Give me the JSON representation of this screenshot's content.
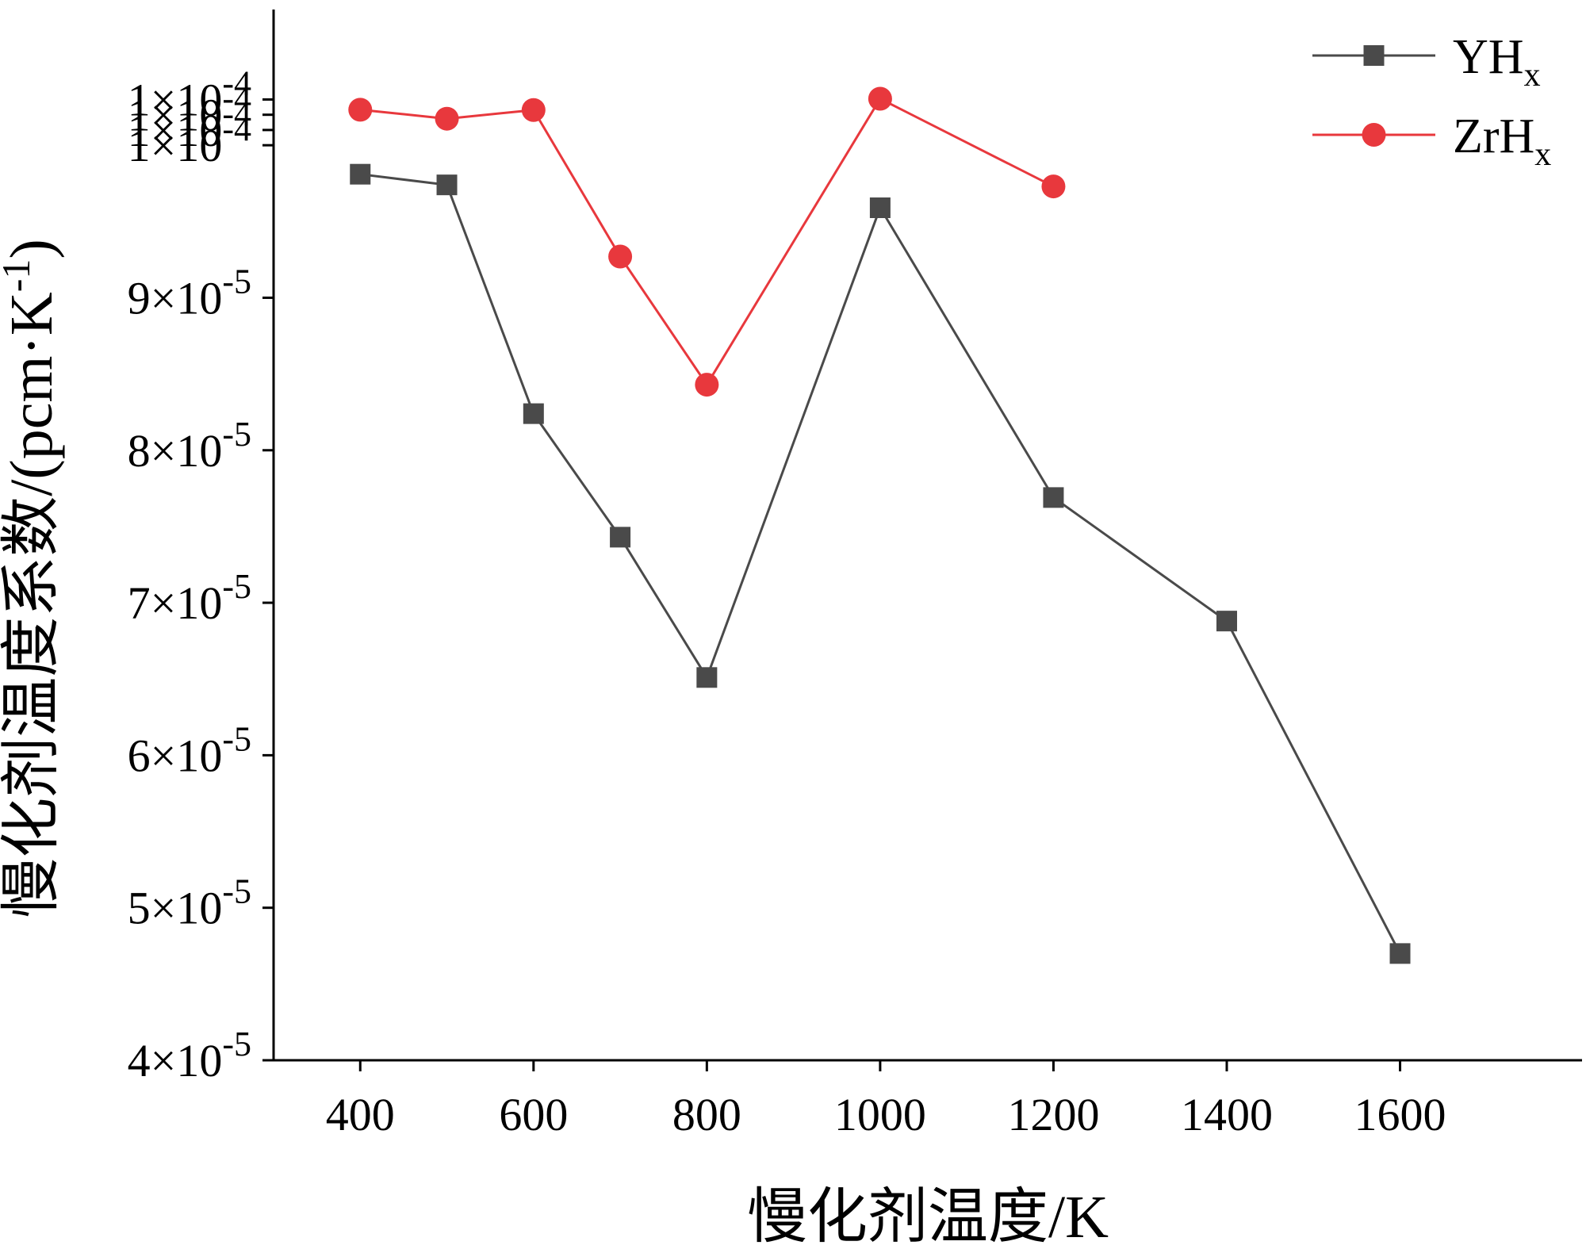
{
  "chart_data": {
    "type": "line",
    "title": "",
    "xlabel": "慢化剂温度/K",
    "ylabel": {
      "prefix": "慢化剂温度系数/(pcm·K",
      "sup": "-1",
      "suffix": ")"
    },
    "xlim": [
      300,
      1810
    ],
    "ylim": [
      4e-05,
      0.0001089
    ],
    "x_ticks": [
      400,
      600,
      800,
      1000,
      1200,
      1400,
      1600
    ],
    "x_tick_labels": [
      "400",
      "600",
      "800",
      "1000",
      "1200",
      "1400",
      "1600"
    ],
    "y_ticks": [
      4e-05,
      5e-05,
      6e-05,
      7e-05,
      8e-05,
      9e-05,
      0.0001,
      0.000101,
      0.000102,
      0.000103
    ],
    "y_tick_labels": [
      {
        "mantissa": "4×10",
        "exp": "-5"
      },
      {
        "mantissa": "5×10",
        "exp": "-5"
      },
      {
        "mantissa": "6×10",
        "exp": "-5"
      },
      {
        "mantissa": "7×10",
        "exp": "-5"
      },
      {
        "mantissa": "8×10",
        "exp": "-5"
      },
      {
        "mantissa": "9×10",
        "exp": "-5"
      },
      {
        "mantissa": "1×10",
        "exp": "-4"
      },
      {
        "mantissa": "1×10",
        "exp": "-4"
      },
      {
        "mantissa": "1×10",
        "exp": "-4"
      },
      {
        "mantissa": "1×10",
        "exp": "-4"
      }
    ],
    "legend_position": "top-right",
    "grid": false,
    "series": [
      {
        "name": "YHx",
        "label_main": "YH",
        "label_sub": "x",
        "color": "#4a4a4a",
        "marker": "square",
        "x": [
          400,
          500,
          600,
          700,
          800,
          1000,
          1200,
          1400,
          1600
        ],
        "values": [
          9.81e-05,
          9.74e-05,
          8.24e-05,
          7.43e-05,
          6.51e-05,
          9.59e-05,
          7.69e-05,
          6.88e-05,
          4.7e-05
        ]
      },
      {
        "name": "ZrHx",
        "label_main": "ZrH",
        "label_sub": "x",
        "color": "#e8383d",
        "marker": "circle",
        "x": [
          400,
          500,
          600,
          700,
          800,
          1000,
          1200
        ],
        "values": [
          0.00010233,
          0.00010174,
          0.00010231,
          9.27e-05,
          8.43e-05,
          0.00010305,
          9.73e-05
        ]
      }
    ]
  }
}
